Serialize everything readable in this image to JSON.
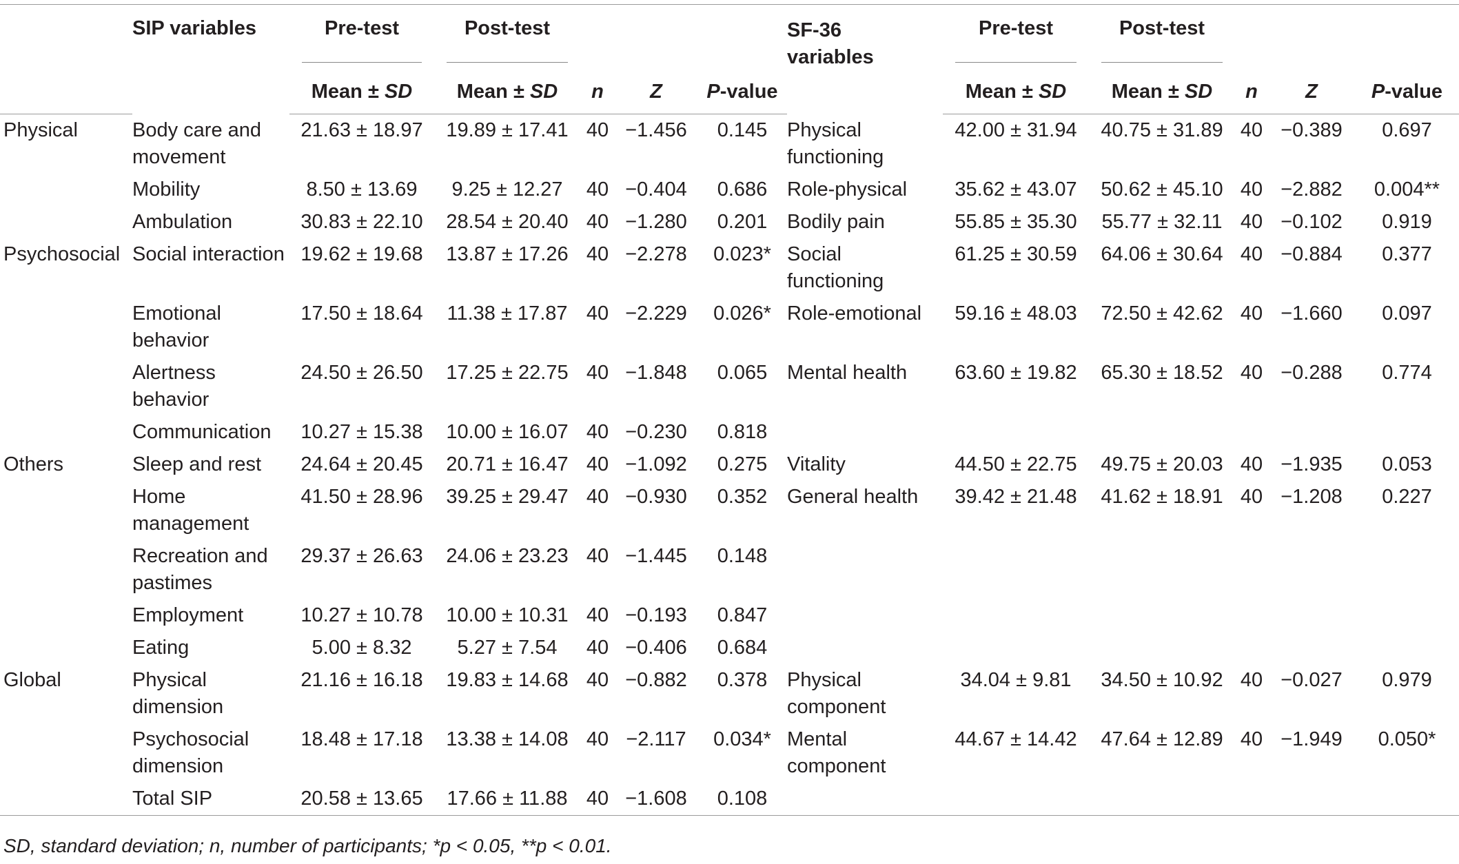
{
  "headers": {
    "sip_variables": "SIP variables",
    "pre_test": "Pre-test",
    "post_test": "Post-test",
    "sf36_variables_line1": "SF-36",
    "sf36_variables_line2": "variables",
    "mean_sd": "Mean ± SD",
    "n": "n",
    "z": "Z",
    "p_value": "P-value"
  },
  "rows": [
    {
      "group": "Physical",
      "sip": "Body care and movement",
      "sip_pre": "21.63 ± 18.97",
      "sip_post": "19.89 ± 17.41",
      "sip_n": "40",
      "sip_z": "−1.456",
      "sip_p": "0.145",
      "sf": "Physical functioning",
      "sf_pre": "42.00 ± 31.94",
      "sf_post": "40.75 ± 31.89",
      "sf_n": "40",
      "sf_z": "−0.389",
      "sf_p": "0.697"
    },
    {
      "group": "",
      "sip": "Mobility",
      "sip_pre": "8.50 ± 13.69",
      "sip_post": "9.25 ± 12.27",
      "sip_n": "40",
      "sip_z": "−0.404",
      "sip_p": "0.686",
      "sf": "Role-physical",
      "sf_pre": "35.62 ± 43.07",
      "sf_post": "50.62 ± 45.10",
      "sf_n": "40",
      "sf_z": "−2.882",
      "sf_p": "0.004**"
    },
    {
      "group": "",
      "sip": "Ambulation",
      "sip_pre": "30.83 ± 22.10",
      "sip_post": "28.54 ± 20.40",
      "sip_n": "40",
      "sip_z": "−1.280",
      "sip_p": "0.201",
      "sf": "Bodily pain",
      "sf_pre": "55.85 ± 35.30",
      "sf_post": "55.77 ± 32.11",
      "sf_n": "40",
      "sf_z": "−0.102",
      "sf_p": "0.919"
    },
    {
      "group": "Psychosocial",
      "sip": "Social interaction",
      "sip_pre": "19.62 ± 19.68",
      "sip_post": "13.87 ± 17.26",
      "sip_n": "40",
      "sip_z": "−2.278",
      "sip_p": "0.023*",
      "sf": "Social functioning",
      "sf_pre": "61.25 ± 30.59",
      "sf_post": "64.06 ± 30.64",
      "sf_n": "40",
      "sf_z": "−0.884",
      "sf_p": "0.377"
    },
    {
      "group": "",
      "sip": "Emotional behavior",
      "sip_pre": "17.50 ± 18.64",
      "sip_post": "11.38 ± 17.87",
      "sip_n": "40",
      "sip_z": "−2.229",
      "sip_p": "0.026*",
      "sf": "Role-emotional",
      "sf_pre": "59.16 ± 48.03",
      "sf_post": "72.50 ± 42.62",
      "sf_n": "40",
      "sf_z": "−1.660",
      "sf_p": "0.097"
    },
    {
      "group": "",
      "sip": "Alertness behavior",
      "sip_pre": "24.50 ± 26.50",
      "sip_post": "17.25 ± 22.75",
      "sip_n": "40",
      "sip_z": "−1.848",
      "sip_p": "0.065",
      "sf": "Mental health",
      "sf_pre": "63.60 ± 19.82",
      "sf_post": "65.30 ± 18.52",
      "sf_n": "40",
      "sf_z": "−0.288",
      "sf_p": "0.774"
    },
    {
      "group": "",
      "sip": "Communication",
      "sip_pre": "10.27 ± 15.38",
      "sip_post": "10.00 ± 16.07",
      "sip_n": "40",
      "sip_z": "−0.230",
      "sip_p": "0.818",
      "sf": "",
      "sf_pre": "",
      "sf_post": "",
      "sf_n": "",
      "sf_z": "",
      "sf_p": ""
    },
    {
      "group": "Others",
      "sip": "Sleep and rest",
      "sip_pre": "24.64 ± 20.45",
      "sip_post": "20.71 ± 16.47",
      "sip_n": "40",
      "sip_z": "−1.092",
      "sip_p": "0.275",
      "sf": "Vitality",
      "sf_pre": "44.50 ± 22.75",
      "sf_post": "49.75 ± 20.03",
      "sf_n": "40",
      "sf_z": "−1.935",
      "sf_p": "0.053"
    },
    {
      "group": "",
      "sip": "Home management",
      "sip_pre": "41.50 ± 28.96",
      "sip_post": "39.25 ± 29.47",
      "sip_n": "40",
      "sip_z": "−0.930",
      "sip_p": "0.352",
      "sf": "General health",
      "sf_pre": "39.42 ± 21.48",
      "sf_post": "41.62 ± 18.91",
      "sf_n": "40",
      "sf_z": "−1.208",
      "sf_p": "0.227"
    },
    {
      "group": "",
      "sip": "Recreation and pastimes",
      "sip_pre": "29.37 ± 26.63",
      "sip_post": "24.06 ± 23.23",
      "sip_n": "40",
      "sip_z": "−1.445",
      "sip_p": "0.148",
      "sf": "",
      "sf_pre": "",
      "sf_post": "",
      "sf_n": "",
      "sf_z": "",
      "sf_p": ""
    },
    {
      "group": "",
      "sip": "Employment",
      "sip_pre": "10.27 ± 10.78",
      "sip_post": "10.00 ± 10.31",
      "sip_n": "40",
      "sip_z": "−0.193",
      "sip_p": "0.847",
      "sf": "",
      "sf_pre": "",
      "sf_post": "",
      "sf_n": "",
      "sf_z": "",
      "sf_p": ""
    },
    {
      "group": "",
      "sip": "Eating",
      "sip_pre": "5.00 ± 8.32",
      "sip_post": "5.27 ± 7.54",
      "sip_n": "40",
      "sip_z": "−0.406",
      "sip_p": "0.684",
      "sf": "",
      "sf_pre": "",
      "sf_post": "",
      "sf_n": "",
      "sf_z": "",
      "sf_p": ""
    },
    {
      "group": "Global",
      "sip": "Physical dimension",
      "sip_pre": "21.16 ± 16.18",
      "sip_post": "19.83 ± 14.68",
      "sip_n": "40",
      "sip_z": "−0.882",
      "sip_p": "0.378",
      "sf": "Physical component",
      "sf_pre": "34.04 ± 9.81",
      "sf_post": "34.50 ± 10.92",
      "sf_n": "40",
      "sf_z": "−0.027",
      "sf_p": "0.979"
    },
    {
      "group": "",
      "sip": "Psychosocial dimension",
      "sip_pre": "18.48 ± 17.18",
      "sip_post": "13.38 ± 14.08",
      "sip_n": "40",
      "sip_z": "−2.117",
      "sip_p": "0.034*",
      "sf": "Mental component",
      "sf_pre": "44.67 ± 14.42",
      "sf_post": "47.64 ± 12.89",
      "sf_n": "40",
      "sf_z": "−1.949",
      "sf_p": "0.050*"
    },
    {
      "group": "",
      "sip": "Total SIP",
      "sip_pre": "20.58 ± 13.65",
      "sip_post": "17.66 ± 11.88",
      "sip_n": "40",
      "sip_z": "−1.608",
      "sip_p": "0.108",
      "sf": "",
      "sf_pre": "",
      "sf_post": "",
      "sf_n": "",
      "sf_z": "",
      "sf_p": ""
    }
  ],
  "footnote": "SD, standard deviation; n, number of participants; *p < 0.05, **p < 0.01."
}
